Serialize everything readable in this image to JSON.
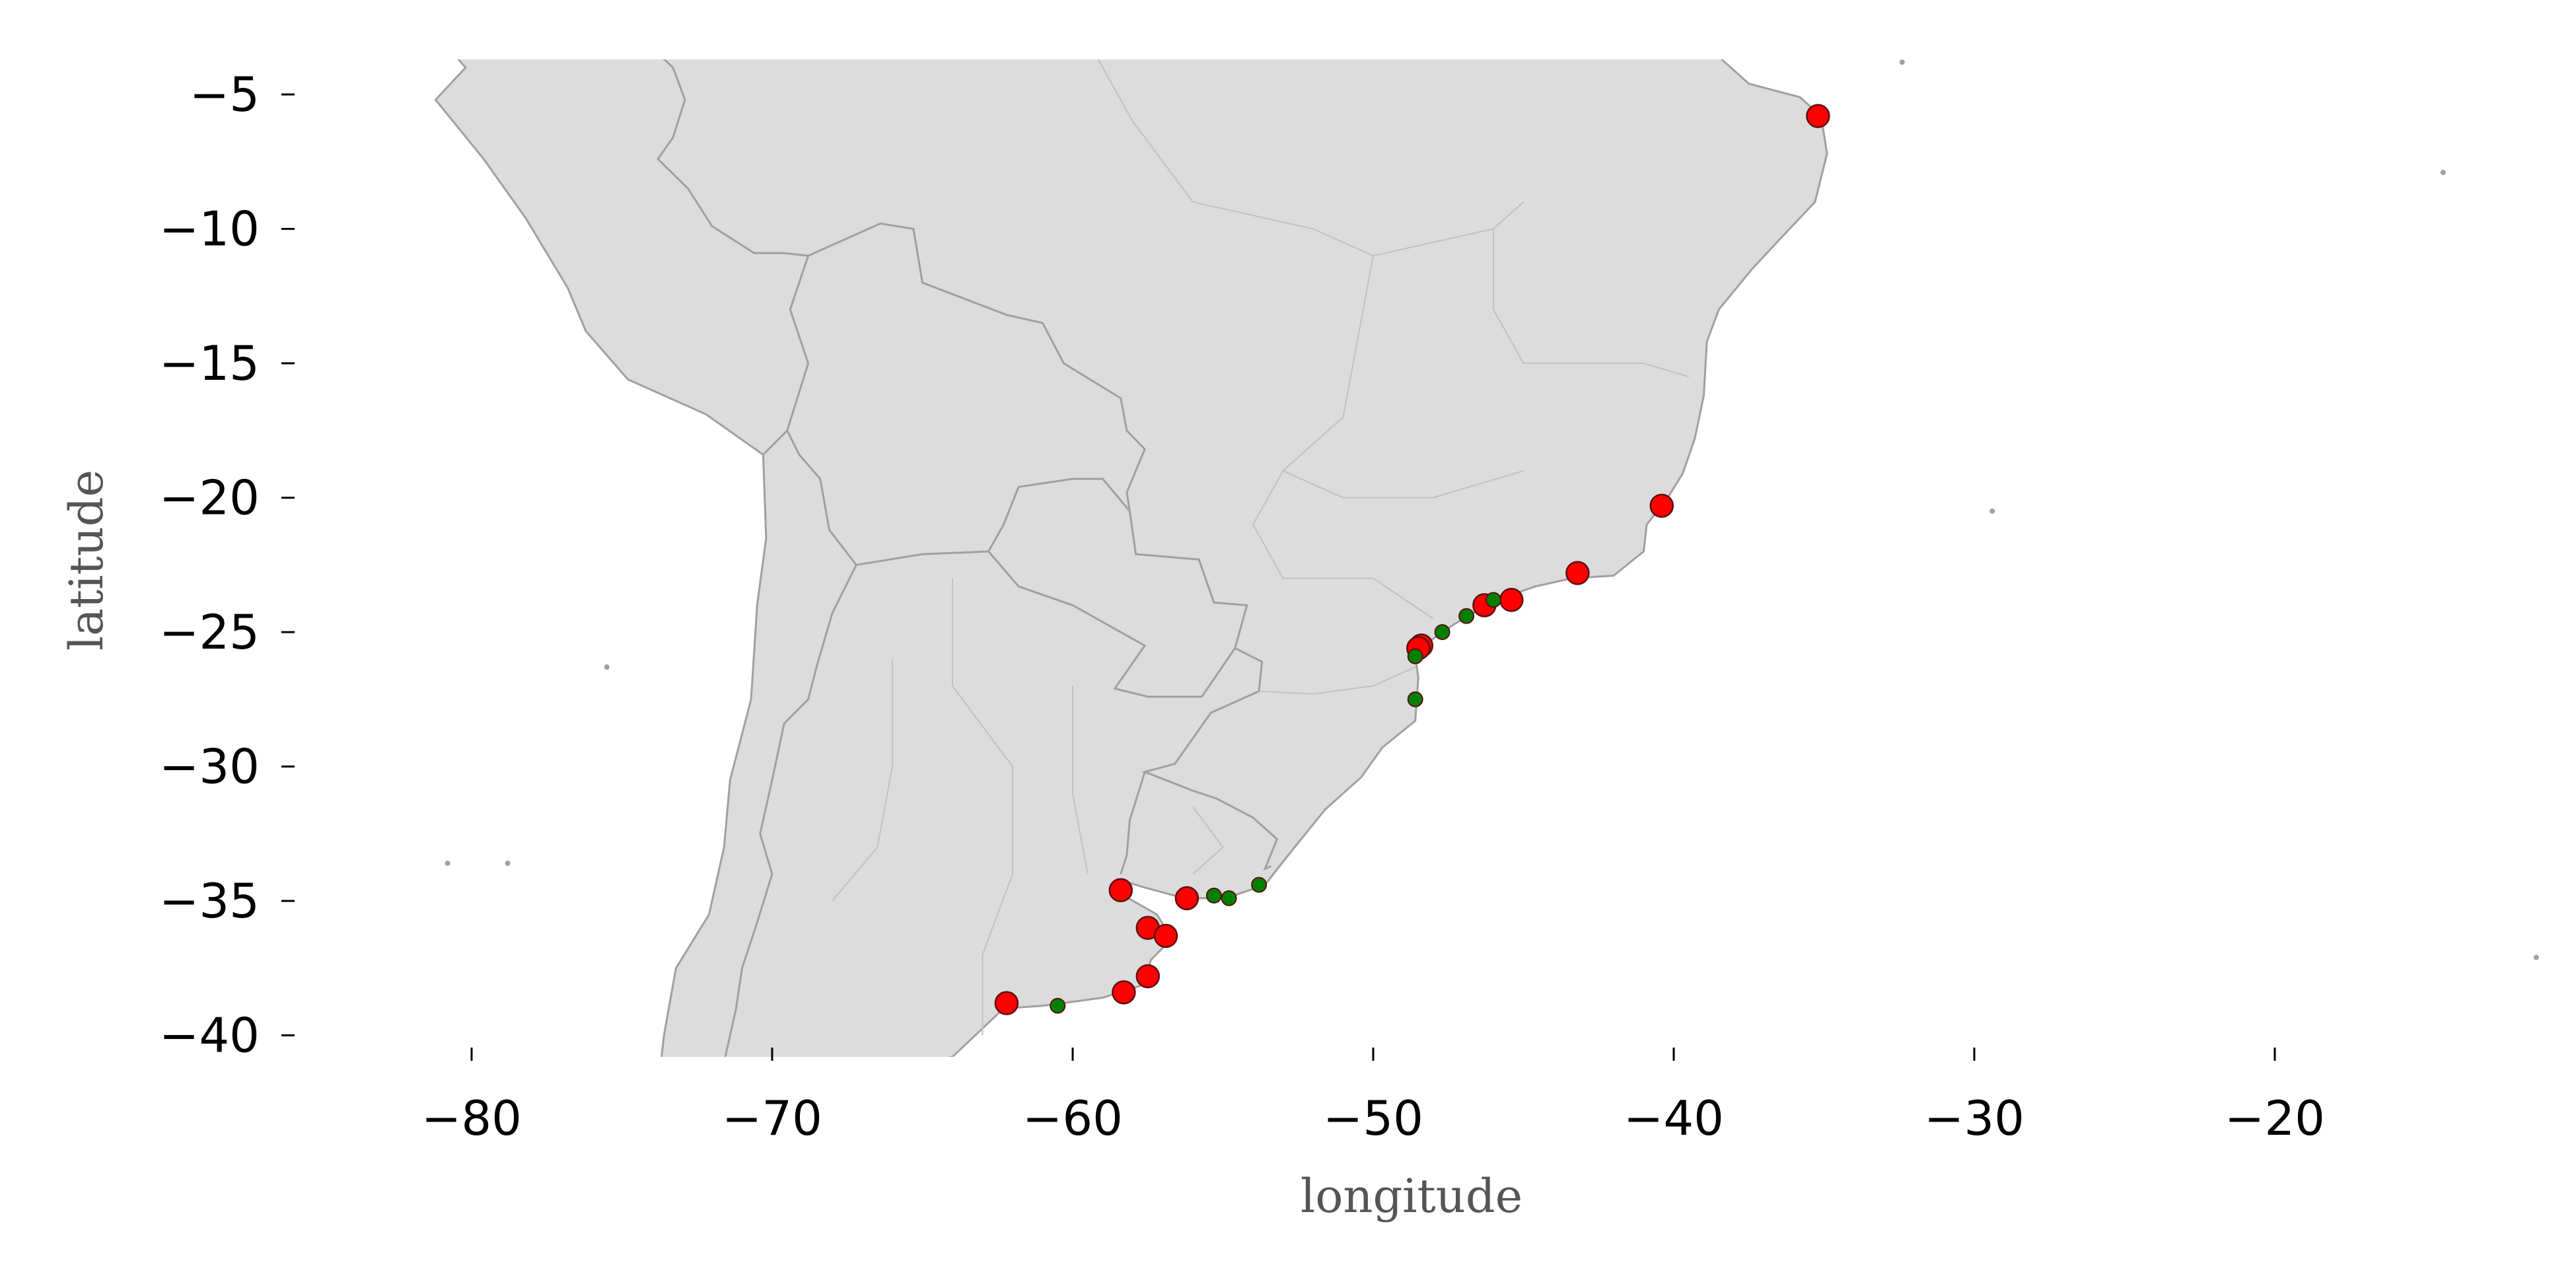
{
  "colors": {
    "land": "#dcdcdc",
    "country_border": "#a0a0a0",
    "state_border": "#c2c2c2",
    "marker_red": "#ff0000",
    "marker_green": "#008000",
    "marker_edge": "#5a1010",
    "tick": "#000000",
    "axis_title": "#555555",
    "background": "#ffffff"
  },
  "chart_data": {
    "type": "scatter",
    "title": "",
    "xlabel": "longitude",
    "ylabel": "latitude",
    "xlim": [
      -85,
      1
    ],
    "ylim": [
      -41,
      -4
    ],
    "xticks": [
      -80,
      -70,
      -60,
      -50,
      -40,
      -30,
      -20
    ],
    "yticks": [
      -5,
      -10,
      -15,
      -20,
      -25,
      -30,
      -35,
      -40
    ],
    "xtick_labels": [
      "−80",
      "−70",
      "−60",
      "−50",
      "−40",
      "−30",
      "−20"
    ],
    "ytick_labels": [
      "−5",
      "−10",
      "−15",
      "−20",
      "−25",
      "−30",
      "−35",
      "−40"
    ],
    "grid": false,
    "basemap": "South America country and state borders",
    "series": [
      {
        "color": "#ff0000",
        "marker": "large circle",
        "points": [
          {
            "x": -35.2,
            "y": -5.8
          },
          {
            "x": -40.4,
            "y": -20.3
          },
          {
            "x": -43.2,
            "y": -22.8
          },
          {
            "x": -45.4,
            "y": -23.8
          },
          {
            "x": -46.3,
            "y": -24.0
          },
          {
            "x": -48.4,
            "y": -25.5
          },
          {
            "x": -48.5,
            "y": -25.6
          },
          {
            "x": -58.4,
            "y": -34.6
          },
          {
            "x": -56.2,
            "y": -34.9
          },
          {
            "x": -57.5,
            "y": -36.0
          },
          {
            "x": -56.9,
            "y": -36.3
          },
          {
            "x": -57.5,
            "y": -37.8
          },
          {
            "x": -58.3,
            "y": -38.4
          },
          {
            "x": -62.2,
            "y": -38.8
          }
        ]
      },
      {
        "color": "#008000",
        "marker": "small circle",
        "points": [
          {
            "x": -46.0,
            "y": -23.8
          },
          {
            "x": -46.9,
            "y": -24.4
          },
          {
            "x": -47.7,
            "y": -25.0
          },
          {
            "x": -48.6,
            "y": -25.9
          },
          {
            "x": -48.6,
            "y": -27.5
          },
          {
            "x": -53.8,
            "y": -34.4
          },
          {
            "x": -54.8,
            "y": -34.9
          },
          {
            "x": -55.3,
            "y": -34.8
          },
          {
            "x": -60.5,
            "y": -38.9
          }
        ]
      }
    ]
  }
}
